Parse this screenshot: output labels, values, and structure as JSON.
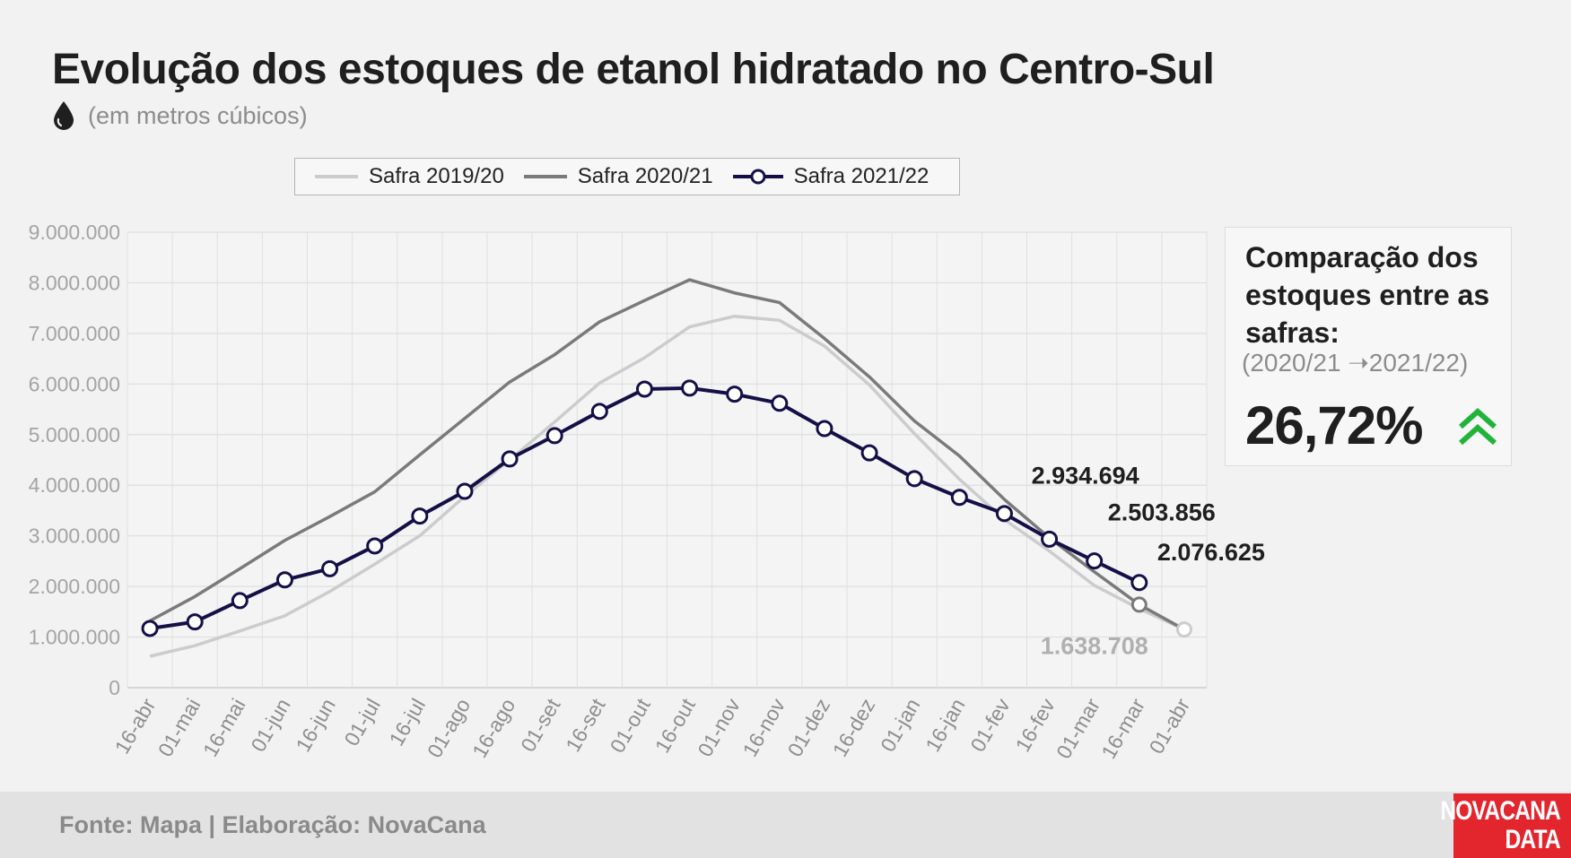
{
  "header": {
    "title": "Evolução dos estoques de etanol hidratado no Centro-Sul",
    "subtitle": "(em metros cúbicos)",
    "subtitle_icon": "droplet-icon"
  },
  "chart_data": {
    "type": "line",
    "categories": [
      "16-abr",
      "01-mai",
      "16-mai",
      "01-jun",
      "16-jun",
      "01-jul",
      "16-jul",
      "01-ago",
      "16-ago",
      "01-set",
      "16-set",
      "01-out",
      "16-out",
      "01-nov",
      "16-nov",
      "01-dez",
      "16-dez",
      "01-jan",
      "16-jan",
      "01-fev",
      "16-fev",
      "01-mar",
      "16-mar",
      "01-abr"
    ],
    "y_ticks": [
      "0",
      "1.000.000",
      "2.000.000",
      "3.000.000",
      "4.000.000",
      "5.000.000",
      "6.000.000",
      "7.000.000",
      "8.000.000",
      "9.000.000"
    ],
    "ylim": [
      0,
      9000000
    ],
    "grid": true,
    "legend_position": "top",
    "series": [
      {
        "name": "Safra 2019/20",
        "color": "#cccccc",
        "markers": false,
        "values": [
          620000,
          830000,
          1120000,
          1420000,
          1900000,
          2440000,
          3000000,
          3780000,
          4500000,
          5250000,
          6020000,
          6520000,
          7130000,
          7340000,
          7260000,
          6750000,
          5980000,
          5020000,
          4120000,
          3320000,
          2700000,
          2020000,
          1560000,
          1150000
        ]
      },
      {
        "name": "Safra 2020/21",
        "color": "#7a7a7a",
        "markers": false,
        "values": [
          1320000,
          1800000,
          2350000,
          2910000,
          3380000,
          3870000,
          4600000,
          5320000,
          6040000,
          6580000,
          7230000,
          7650000,
          8060000,
          7800000,
          7610000,
          6900000,
          6140000,
          5270000,
          4580000,
          3720000,
          2960000,
          2290000,
          1640000,
          1150000
        ]
      },
      {
        "name": "Safra 2021/22",
        "color": "#141047",
        "markers": true,
        "values": [
          1170000,
          1300000,
          1720000,
          2130000,
          2350000,
          2800000,
          3390000,
          3880000,
          4520000,
          4980000,
          5460000,
          5900000,
          5920000,
          5800000,
          5620000,
          5120000,
          4640000,
          4130000,
          3760000,
          3440000,
          2934694,
          2503856,
          2076625,
          null
        ]
      }
    ],
    "annotations": [
      {
        "text": "2.934.694",
        "category": "16-fev",
        "series": "Safra 2021/22"
      },
      {
        "text": "2.503.856",
        "category": "01-mar",
        "series": "Safra 2021/22"
      },
      {
        "text": "2.076.625",
        "category": "16-mar",
        "series": "Safra 2021/22"
      },
      {
        "text": "1.638.708",
        "category": "16-mar",
        "series": "Safra 2020/21"
      }
    ]
  },
  "comparison": {
    "title": "Comparação dos estoques entre as safras:",
    "period": "(2020/21 ➝2021/22)",
    "value": "26,72%",
    "icon": "double-chevron-up-icon",
    "icon_color": "#22b43a"
  },
  "footer": {
    "source": "Fonte: Mapa | Elaboração: NovaCana",
    "logo_line1": "NOVACANA",
    "logo_line2": "DATA",
    "logo_color": "#e3262e"
  }
}
